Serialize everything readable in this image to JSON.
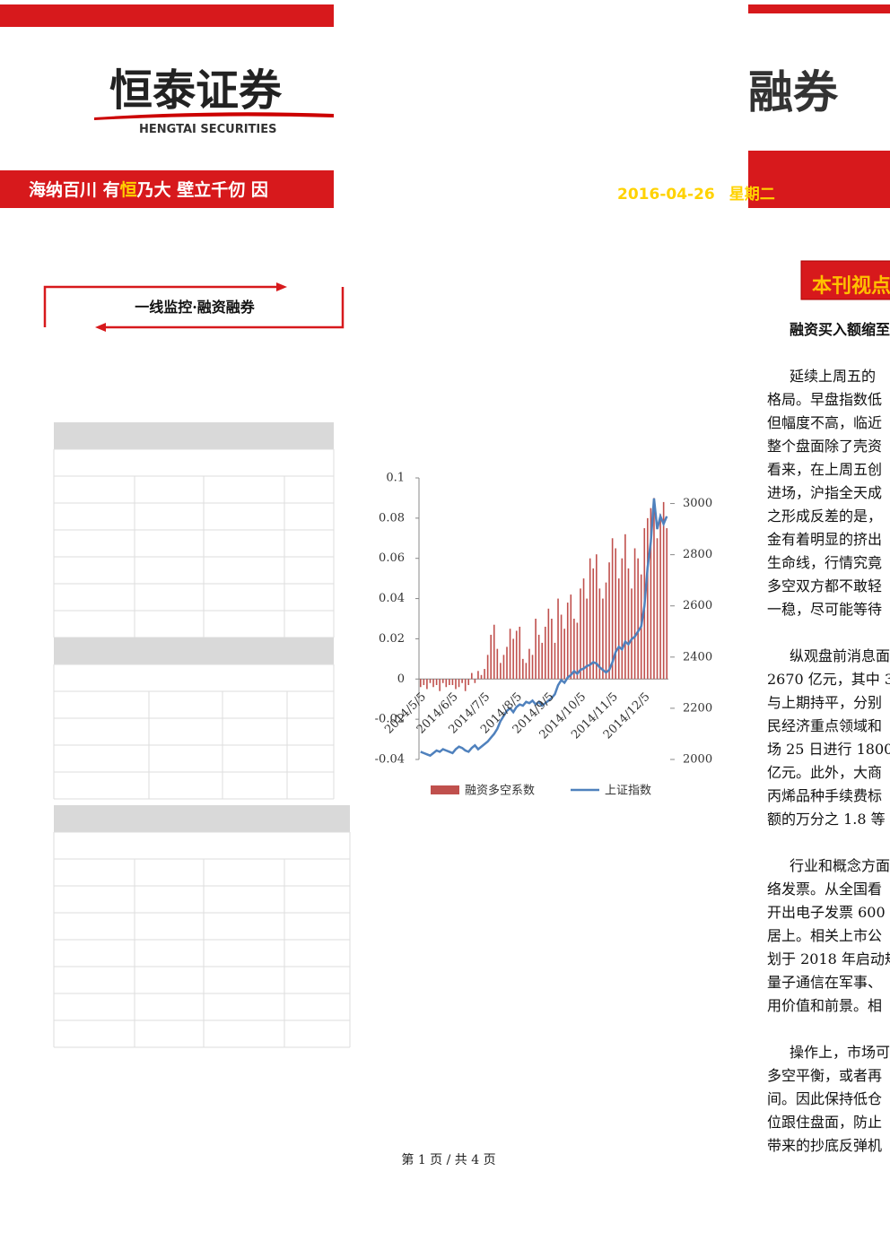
{
  "header": {
    "logo_cn": "恒泰证券",
    "logo_en": "HENGTAI SECURITIES",
    "slogan": [
      "海纳百川 有",
      "恒",
      "乃大 壁立千仞 因"
    ],
    "product_partial": "融券",
    "date": "2016-04-26",
    "weekday": "星期二"
  },
  "section_label": "一线监控·融资融券",
  "viewpoint": {
    "tag": "本刊视点",
    "headline": "融资买入额缩至",
    "paragraphs": [
      [
        "延续上周五的",
        "格局。早盘指数低",
        "但幅度不高，临近",
        "整个盘面除了壳资",
        "看来，在上周五创",
        "进场，沪指全天成",
        "之形成反差的是，",
        "金有着明显的挤出",
        "生命线，行情究竟",
        "多空双方都不敢轻",
        "一稳，尽可能等待"
      ],
      [
        "纵观盘前消息面",
        "2670 亿元，其中 3",
        "与上期持平，分别",
        "民经济重点领域和",
        "场 25 日进行 1800",
        "亿元。此外，大商",
        "丙烯品种手续费标",
        "额的万分之 1.8 等"
      ],
      [
        "行业和概念方面",
        "络发票。从全国看",
        "开出电子发票 600",
        "居上。相关上市公",
        "划于 2018 年启动规",
        "量子通信在军事、",
        "用价值和前景。相"
      ],
      [
        "操作上，市场可",
        "多空平衡，或者再",
        "间。因此保持低仓",
        "位跟住盘面，防止",
        "带来的抄底反弹机"
      ]
    ]
  },
  "chart_data": {
    "type": "combo",
    "categories": [
      "2014/5/5",
      null,
      null,
      null,
      null,
      null,
      null,
      null,
      null,
      null,
      "2014/6/5",
      null,
      null,
      null,
      null,
      null,
      null,
      null,
      null,
      null,
      "2014/7/5",
      null,
      null,
      null,
      null,
      null,
      null,
      null,
      null,
      null,
      "2014/8/5",
      null,
      null,
      null,
      null,
      null,
      null,
      null,
      null,
      null,
      "2014/9/5",
      null,
      null,
      null,
      null,
      null,
      null,
      null,
      null,
      null,
      "2014/10/5",
      null,
      null,
      null,
      null,
      null,
      null,
      null,
      null,
      null,
      "2014/11/5",
      null,
      null,
      null,
      null,
      null,
      null,
      null,
      null,
      null,
      "2014/12/5",
      null,
      null,
      null,
      null,
      null,
      null,
      null
    ],
    "series": [
      {
        "name": "融资多空系数",
        "type": "bar",
        "color": "#c0504d",
        "values": [
          -0.004,
          -0.003,
          -0.005,
          -0.002,
          -0.004,
          -0.003,
          -0.006,
          -0.002,
          -0.004,
          -0.003,
          -0.003,
          -0.005,
          -0.004,
          -0.002,
          -0.006,
          -0.003,
          0.003,
          -0.002,
          0.004,
          0.002,
          0.005,
          0.012,
          0.022,
          0.027,
          0.015,
          0.008,
          0.012,
          0.016,
          0.025,
          0.02,
          0.024,
          0.026,
          0.01,
          0.008,
          0.015,
          0.012,
          0.03,
          0.022,
          0.018,
          0.026,
          0.035,
          0.03,
          0.018,
          0.04,
          0.032,
          0.025,
          0.038,
          0.042,
          0.03,
          0.028,
          0.045,
          0.05,
          0.04,
          0.06,
          0.055,
          0.062,
          0.045,
          0.04,
          0.048,
          0.058,
          0.07,
          0.065,
          0.05,
          0.06,
          0.072,
          0.055,
          0.045,
          0.065,
          0.06,
          0.052,
          0.075,
          0.08,
          0.085,
          0.09,
          0.07,
          0.082,
          0.088,
          0.075
        ]
      },
      {
        "name": "上证指数",
        "type": "line",
        "axis": "y2",
        "color": "#4f81bd",
        "values": [
          2030,
          2025,
          2020,
          2015,
          2025,
          2035,
          2030,
          2040,
          2035,
          2030,
          2025,
          2040,
          2050,
          2045,
          2035,
          2030,
          2045,
          2055,
          2040,
          2050,
          2060,
          2070,
          2085,
          2100,
          2120,
          2150,
          2170,
          2190,
          2200,
          2185,
          2205,
          2215,
          2210,
          2225,
          2220,
          2230,
          2215,
          2225,
          2210,
          2220,
          2230,
          2240,
          2255,
          2290,
          2310,
          2300,
          2320,
          2330,
          2345,
          2335,
          2350,
          2355,
          2365,
          2370,
          2380,
          2375,
          2360,
          2350,
          2340,
          2350,
          2380,
          2420,
          2440,
          2430,
          2460,
          2450,
          2470,
          2480,
          2500,
          2520,
          2600,
          2750,
          2850,
          3020,
          2900,
          2950,
          2920,
          2950
        ]
      }
    ],
    "ylim": [
      -0.04,
      0.1
    ],
    "yticks": [
      -0.04,
      -0.02,
      0,
      0.02,
      0.04,
      0.06,
      0.08,
      0.1
    ],
    "y2lim": [
      2000,
      3100
    ],
    "y2ticks": [
      2000,
      2200,
      2400,
      2600,
      2800,
      3000
    ],
    "legend": "bottom"
  },
  "footer": "第 1 页 / 共 4 页"
}
